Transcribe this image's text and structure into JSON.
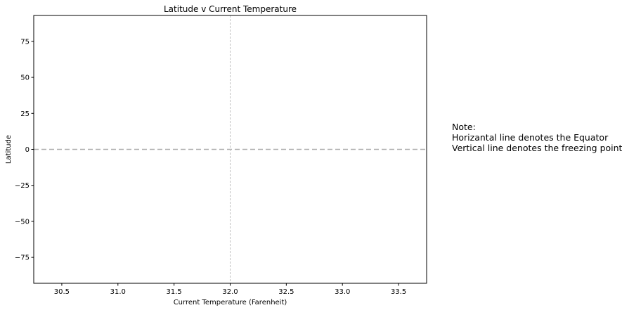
{
  "chart_data": {
    "type": "scatter",
    "title": "Latitude v Current Temperature",
    "xlabel": "Current Temperature (Farenheit)",
    "ylabel": "Latitude",
    "xlim": [
      30.25,
      33.75
    ],
    "ylim": [
      -93,
      93
    ],
    "x_ticks": [
      30.5,
      31.0,
      31.5,
      32.0,
      32.5,
      33.0,
      33.5
    ],
    "x_tick_labels": [
      "30.5",
      "31.0",
      "31.5",
      "32.0",
      "32.5",
      "33.0",
      "33.5"
    ],
    "y_ticks": [
      75,
      50,
      25,
      0,
      -25,
      -50,
      -75
    ],
    "y_tick_labels": [
      "75",
      "50",
      "25",
      "0",
      "−25",
      "−50",
      "−75"
    ],
    "grid": false,
    "points": [],
    "reference_lines": {
      "horizontal_y": 0,
      "vertical_x": 32
    }
  },
  "note": {
    "heading": "Note:",
    "line1": "Horizantal line denotes the Equator",
    "line2": "Vertical line denotes the freezing point"
  }
}
